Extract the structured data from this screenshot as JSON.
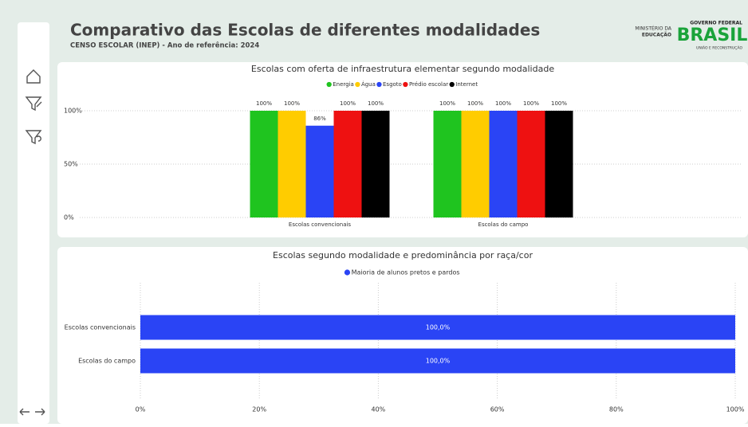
{
  "header": {
    "title": "Comparativo das Escolas de diferentes modalidades",
    "subtitle": "CENSO ESCOLAR (INEP) - Ano de referência: 2024",
    "ministry": [
      "MINISTÉRIO DA",
      "EDUCAÇÃO"
    ],
    "gov": "GOVERNO FEDERAL",
    "brand": "BRASIL",
    "slogan": "UNIÃO E RECONSTRUÇÃO"
  },
  "chart_data": [
    {
      "type": "bar",
      "title": "Escolas com oferta de infraestrutura elementar segundo modalidade",
      "categories": [
        "Escolas convencionais",
        "Escolas do campo"
      ],
      "series": [
        {
          "name": "Energia",
          "color": "#1fc41f",
          "values": [
            100,
            100
          ],
          "value_labels": [
            "100%",
            "100%"
          ]
        },
        {
          "name": "Água",
          "color": "#ffcc00",
          "values": [
            100,
            100
          ],
          "value_labels": [
            "100%",
            "100%"
          ]
        },
        {
          "name": "Esgoto",
          "color": "#2a44f5",
          "values": [
            86,
            100
          ],
          "value_labels": [
            "86%",
            "100%"
          ]
        },
        {
          "name": "Prédio escolar",
          "color": "#ee1111",
          "values": [
            100,
            100
          ],
          "value_labels": [
            "100%",
            "100%"
          ]
        },
        {
          "name": "Internet",
          "color": "#000000",
          "values": [
            100,
            100
          ],
          "value_labels": [
            "100%",
            "100%"
          ]
        }
      ],
      "ylim": [
        0,
        100
      ],
      "yticks": [
        {
          "value": 0,
          "label": "0%"
        },
        {
          "value": 50,
          "label": "50%"
        },
        {
          "value": 100,
          "label": "100%"
        }
      ],
      "grid": true
    },
    {
      "type": "hbar",
      "title": "Escolas segundo modalidade e predominância por raça/cor",
      "categories": [
        "Escolas convencionais",
        "Escolas do campo"
      ],
      "series": [
        {
          "name": "Maioria de alunos pretos e pardos",
          "color": "#2a44f5",
          "values": [
            100,
            100
          ],
          "value_labels": [
            "100,0%",
            "100,0%"
          ]
        }
      ],
      "xlim": [
        0,
        100
      ],
      "xticks": [
        {
          "value": 0,
          "label": "0%"
        },
        {
          "value": 20,
          "label": "20%"
        },
        {
          "value": 40,
          "label": "40%"
        },
        {
          "value": 60,
          "label": "60%"
        },
        {
          "value": 80,
          "label": "80%"
        },
        {
          "value": 100,
          "label": "100%"
        }
      ],
      "grid": true
    }
  ]
}
